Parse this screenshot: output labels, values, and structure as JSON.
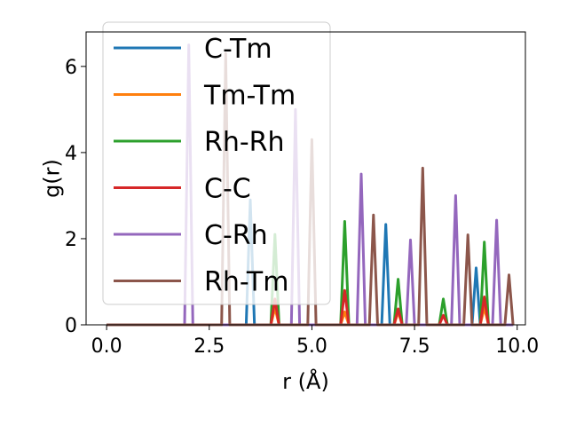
{
  "chart_data": {
    "type": "line",
    "xlabel": "r (Å)",
    "ylabel": "g(r)",
    "xlim": [
      -0.5,
      10.2
    ],
    "ylim": [
      0,
      6.8
    ],
    "xticks": [
      "0.0",
      "2.5",
      "5.0",
      "7.5",
      "10.0"
    ],
    "yticks": [
      "0",
      "2",
      "4",
      "6"
    ],
    "legend_position": "upper-left",
    "series": [
      {
        "name": "C-Tm",
        "color": "#1f77b4",
        "peaks": [
          [
            3.5,
            2.9
          ],
          [
            6.8,
            2.33
          ],
          [
            9.0,
            1.32
          ]
        ]
      },
      {
        "name": "Tm-Tm",
        "color": "#ff7f0e",
        "peaks": [
          [
            4.1,
            0.4
          ],
          [
            5.8,
            0.3
          ],
          [
            7.1,
            0.3
          ],
          [
            9.2,
            0.4
          ]
        ]
      },
      {
        "name": "Rh-Rh",
        "color": "#2ca02c",
        "peaks": [
          [
            4.1,
            2.1
          ],
          [
            5.8,
            2.4
          ],
          [
            7.1,
            1.06
          ],
          [
            8.2,
            0.6
          ],
          [
            9.2,
            1.92
          ]
        ]
      },
      {
        "name": "C-C",
        "color": "#d62728",
        "peaks": [
          [
            4.1,
            0.6
          ],
          [
            5.8,
            0.8
          ],
          [
            7.1,
            0.37
          ],
          [
            8.2,
            0.22
          ],
          [
            9.2,
            0.65
          ]
        ]
      },
      {
        "name": "C-Rh",
        "color": "#9467bd",
        "peaks": [
          [
            2.0,
            6.5
          ],
          [
            4.6,
            5.0
          ],
          [
            6.2,
            3.5
          ],
          [
            7.4,
            1.97
          ],
          [
            8.5,
            3.0
          ],
          [
            9.5,
            2.43
          ]
        ]
      },
      {
        "name": "Rh-Tm",
        "color": "#8c564b",
        "peaks": [
          [
            2.9,
            6.3
          ],
          [
            5.0,
            4.3
          ],
          [
            6.5,
            2.55
          ],
          [
            7.7,
            3.64
          ],
          [
            8.8,
            2.09
          ],
          [
            9.8,
            1.16
          ]
        ]
      }
    ]
  }
}
